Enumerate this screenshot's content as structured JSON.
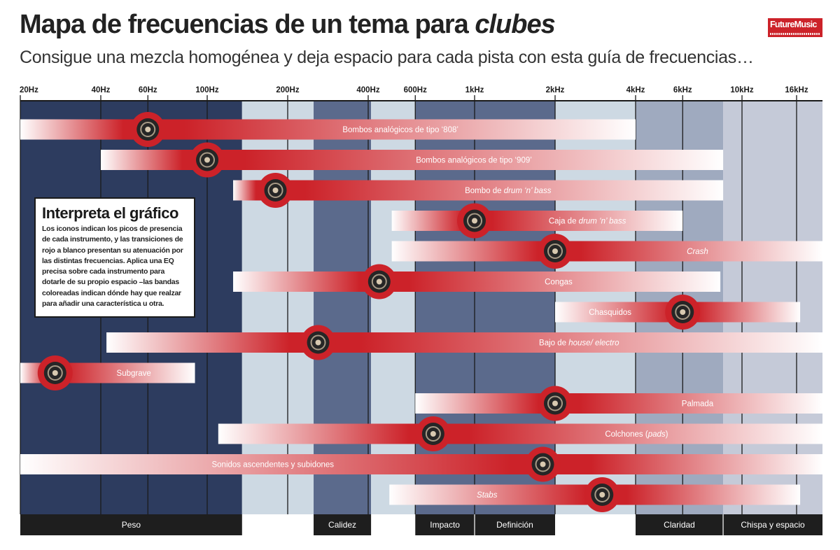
{
  "header": {
    "title_main": "Mapa de frecuencias de un tema para ",
    "title_emphasis": "clubes",
    "subtitle": "Consigue una mezcla homogénea y deja espacio para cada pista con esta guía de frecuencias…",
    "logo_brand": "FutureMusic"
  },
  "legend": {
    "title": "Interpreta el gráfico",
    "text": "Los iconos indican los picos de presencia de cada instrumento, y las transiciones de rojo a blanco presentan su atenuación por las distintas frecuencias. Aplica una EQ precisa sobre cada instrumento para dotarle de su propio espacio –las bandas coloreadas indican dónde hay que realzar para añadir una característica u otra."
  },
  "colors": {
    "accent": "#cc2229",
    "band_dark": "#2d3c5f",
    "band_light": "#cdd9e3",
    "band_mid": "#5b6a8c",
    "band_pale": "#9faabf",
    "band_faint": "#c5cad8",
    "label_bar": "#1e1e1e",
    "grid": "#1a1a1a"
  },
  "chart_data": {
    "type": "range-bar",
    "title": "Mapa de frecuencias de un tema para clubes",
    "x_scale": "log",
    "x_unit": "Hz",
    "xlim": [
      20,
      20000
    ],
    "x_ticks": [
      {
        "hz": 20,
        "label": "20Hz"
      },
      {
        "hz": 40,
        "label": "40Hz"
      },
      {
        "hz": 60,
        "label": "60Hz"
      },
      {
        "hz": 100,
        "label": "100Hz"
      },
      {
        "hz": 200,
        "label": "200Hz"
      },
      {
        "hz": 400,
        "label": "400Hz"
      },
      {
        "hz": 600,
        "label": "600Hz"
      },
      {
        "hz": 1000,
        "label": "1kHz"
      },
      {
        "hz": 2000,
        "label": "2kHz"
      },
      {
        "hz": 4000,
        "label": "4kHz"
      },
      {
        "hz": 6000,
        "label": "6kHz"
      },
      {
        "hz": 10000,
        "label": "10kHz"
      },
      {
        "hz": 16000,
        "label": "16kHz"
      }
    ],
    "zones": [
      {
        "name": "Peso",
        "from": 20,
        "to": 135,
        "shade": "dark",
        "labeled": true
      },
      {
        "name": "",
        "from": 135,
        "to": 250,
        "shade": "light",
        "labeled": false
      },
      {
        "name": "Calidez",
        "from": 250,
        "to": 410,
        "shade": "mid",
        "labeled": true
      },
      {
        "name": "",
        "from": 410,
        "to": 600,
        "shade": "light",
        "labeled": false
      },
      {
        "name": "Impacto",
        "from": 600,
        "to": 1000,
        "shade": "mid",
        "labeled": true
      },
      {
        "name": "Definición",
        "from": 1000,
        "to": 2000,
        "shade": "mid",
        "labeled": true
      },
      {
        "name": "",
        "from": 2000,
        "to": 4000,
        "shade": "light",
        "labeled": false
      },
      {
        "name": "Claridad",
        "from": 4000,
        "to": 8500,
        "shade": "pale",
        "labeled": true
      },
      {
        "name": "Chispa y espacio",
        "from": 8500,
        "to": 20000,
        "shade": "faint",
        "labeled": true
      }
    ],
    "series": [
      {
        "parts": [
          {
            "text": "Bombos analógicos de tipo ‘808’",
            "italic": false
          }
        ],
        "from": 20,
        "to": 4000,
        "peak": 60,
        "icon": "drum-machine-808-icon"
      },
      {
        "parts": [
          {
            "text": "Bombos analógicos de tipo ‘909’",
            "italic": false
          }
        ],
        "from": 40,
        "to": 8500,
        "peak": 100,
        "icon": "drum-machine-909-icon"
      },
      {
        "parts": [
          {
            "text": "Bombo de ",
            "italic": false
          },
          {
            "text": "drum ‘n’ bass",
            "italic": true
          }
        ],
        "from": 125,
        "to": 8500,
        "peak": 180,
        "icon": "dnb-kick-icon"
      },
      {
        "parts": [
          {
            "text": "Caja de ",
            "italic": false
          },
          {
            "text": "drum ‘n’ bass",
            "italic": true
          }
        ],
        "from": 490,
        "to": 6000,
        "peak": 1000,
        "icon": "snare-icon"
      },
      {
        "parts": [
          {
            "text": "Crash",
            "italic": true
          }
        ],
        "from": 490,
        "to": 20000,
        "peak": 2000,
        "icon": "crash-cymbal-icon"
      },
      {
        "parts": [
          {
            "text": "Congas",
            "italic": false
          }
        ],
        "from": 125,
        "to": 8300,
        "peak": 440,
        "icon": "congas-icon"
      },
      {
        "parts": [
          {
            "text": "Chasquidos",
            "italic": false
          }
        ],
        "from": 2000,
        "to": 16500,
        "peak": 6000,
        "icon": "finger-snap-icon"
      },
      {
        "parts": [
          {
            "text": "Bajo de ",
            "italic": false
          },
          {
            "text": "house/ electro",
            "italic": true
          }
        ],
        "from": 42,
        "to": 20000,
        "peak": 260,
        "icon": "bass-synth-icon"
      },
      {
        "parts": [
          {
            "text": "Subgrave",
            "italic": false
          }
        ],
        "from": 20,
        "to": 90,
        "peak": 27,
        "icon": "subwoofer-icon"
      },
      {
        "parts": [
          {
            "text": "Palmada",
            "italic": false
          }
        ],
        "from": 600,
        "to": 20000,
        "peak": 2000,
        "icon": "hand-clap-icon"
      },
      {
        "parts": [
          {
            "text": "Colchones (",
            "italic": false
          },
          {
            "text": "pads",
            "italic": true
          },
          {
            "text": ")",
            "italic": false
          }
        ],
        "from": 110,
        "to": 20000,
        "peak": 700,
        "icon": "pads-keyboard-icon"
      },
      {
        "parts": [
          {
            "text": "Sonidos ascendentes y subidones",
            "italic": false
          }
        ],
        "from": 20,
        "to": 20000,
        "peak": 1800,
        "icon": "sweep-synth-icon"
      },
      {
        "parts": [
          {
            "text": "Stabs",
            "italic": true
          }
        ],
        "from": 480,
        "to": 16500,
        "peak": 3000,
        "icon": "horn-stab-icon"
      }
    ]
  }
}
